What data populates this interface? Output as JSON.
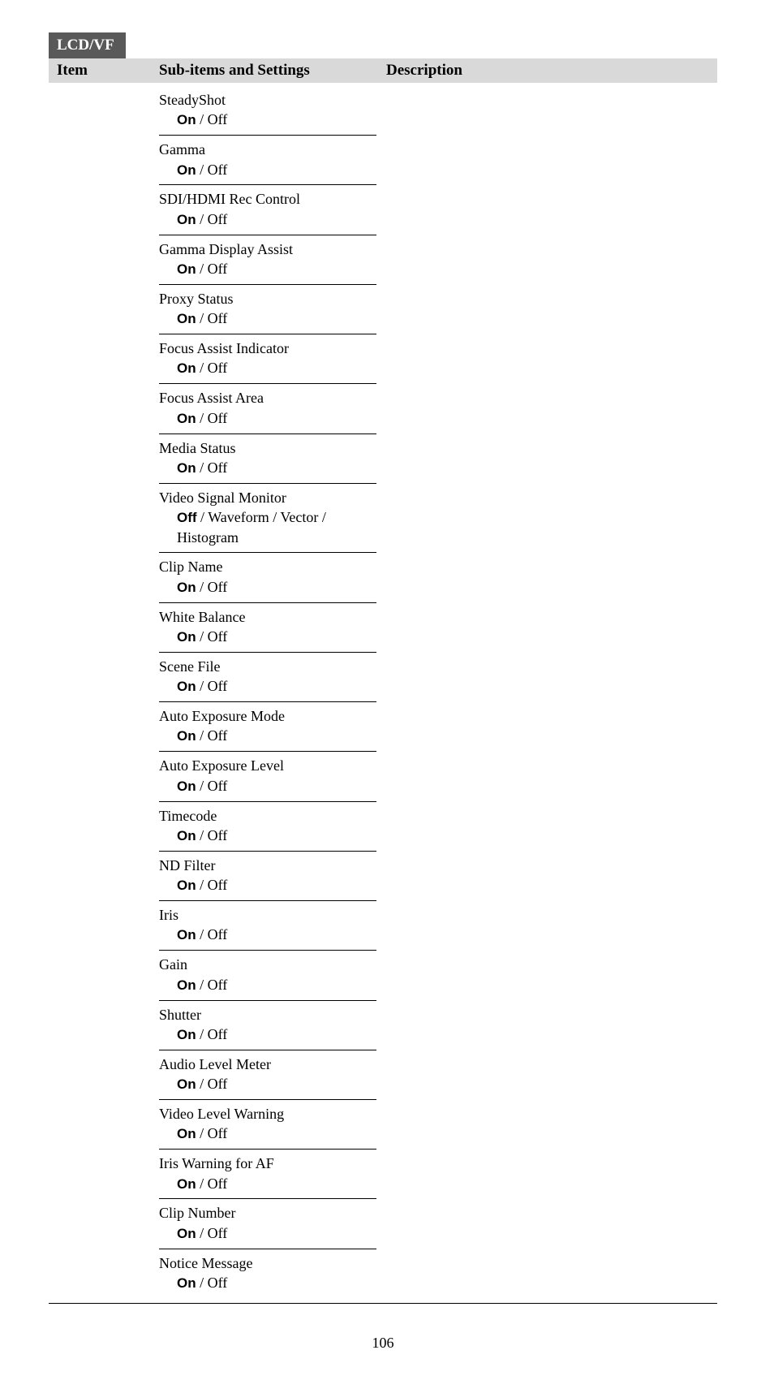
{
  "badge": "LCD/VF",
  "headers": {
    "item": "Item",
    "sub": "Sub-items and Settings",
    "desc": "Description"
  },
  "subitems": [
    {
      "name": "SteadyShot",
      "bold": "On",
      "rest": " / Off"
    },
    {
      "name": "Gamma",
      "bold": "On",
      "rest": " / Off"
    },
    {
      "name": "SDI/HDMI Rec Control",
      "bold": "On",
      "rest": " / Off"
    },
    {
      "name": "Gamma Display Assist",
      "bold": "On",
      "rest": " / Off"
    },
    {
      "name": "Proxy Status",
      "bold": "On",
      "rest": " / Off"
    },
    {
      "name": "Focus Assist Indicator",
      "bold": "On",
      "rest": " / Off"
    },
    {
      "name": "Focus Assist Area",
      "bold": "On",
      "rest": " / Off"
    },
    {
      "name": "Media Status",
      "bold": "On",
      "rest": " / Off"
    },
    {
      "name": "Video Signal Monitor",
      "bold": "Off",
      "rest": " / Waveform / Vector / Histogram"
    },
    {
      "name": "Clip Name",
      "bold": "On",
      "rest": " / Off"
    },
    {
      "name": "White Balance",
      "bold": "On",
      "rest": " / Off"
    },
    {
      "name": "Scene File",
      "bold": "On",
      "rest": " / Off"
    },
    {
      "name": "Auto Exposure Mode",
      "bold": "On",
      "rest": " / Off"
    },
    {
      "name": "Auto Exposure Level",
      "bold": "On",
      "rest": " / Off"
    },
    {
      "name": "Timecode",
      "bold": "On",
      "rest": " / Off"
    },
    {
      "name": "ND Filter",
      "bold": "On",
      "rest": " / Off"
    },
    {
      "name": "Iris",
      "bold": "On",
      "rest": " / Off"
    },
    {
      "name": "Gain",
      "bold": "On",
      "rest": " / Off"
    },
    {
      "name": "Shutter",
      "bold": "On",
      "rest": " / Off"
    },
    {
      "name": "Audio Level Meter",
      "bold": "On",
      "rest": " / Off"
    },
    {
      "name": "Video Level Warning",
      "bold": "On",
      "rest": " / Off"
    },
    {
      "name": "Iris Warning for AF",
      "bold": "On",
      "rest": " / Off"
    },
    {
      "name": "Clip Number",
      "bold": "On",
      "rest": " / Off"
    },
    {
      "name": "Notice Message",
      "bold": "On",
      "rest": " / Off"
    }
  ],
  "page_number": "106"
}
